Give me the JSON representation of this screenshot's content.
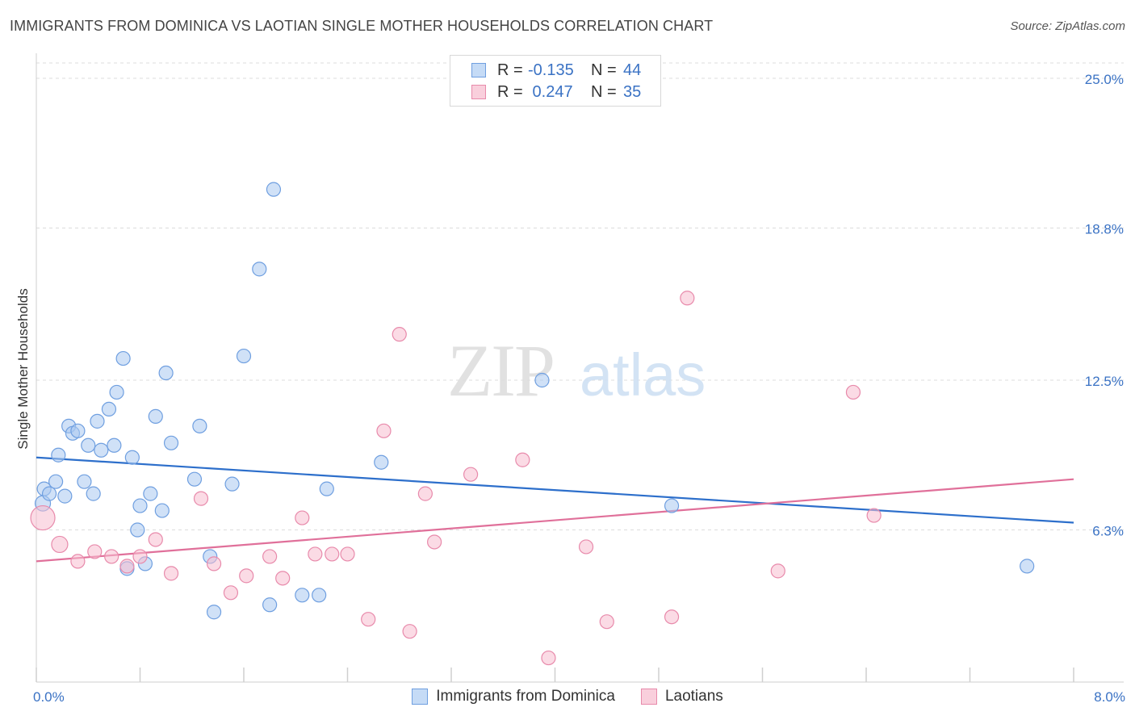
{
  "title": "IMMIGRANTS FROM DOMINICA VS LAOTIAN SINGLE MOTHER HOUSEHOLDS CORRELATION CHART",
  "source": "Source: ZipAtlas.com",
  "watermark": {
    "zip": "ZIP",
    "atlas": "atlas"
  },
  "legend_stats": [
    {
      "r_label": "R = ",
      "r_value": "-0.135",
      "n_label": "N = ",
      "n_value": "44",
      "color": "#a9c8f0",
      "border": "#6f9fe0"
    },
    {
      "r_label": "R = ",
      "r_value": " 0.247",
      "n_label": "N = ",
      "n_value": "35",
      "color": "#f7bdd0",
      "border": "#e88aab"
    }
  ],
  "chart_data": {
    "type": "scatter",
    "ylabel": "Single Mother Households",
    "xlim": [
      0,
      8.0
    ],
    "ylim": [
      0,
      25.0
    ],
    "x_tick_labels": [
      {
        "value": 0,
        "label": "0.0%"
      },
      {
        "value": 8.0,
        "label": "8.0%"
      }
    ],
    "y_tick_labels": [
      {
        "value": 6.3,
        "label": "6.3%"
      },
      {
        "value": 12.5,
        "label": "12.5%"
      },
      {
        "value": 18.8,
        "label": "18.8%"
      },
      {
        "value": 25.0,
        "label": "25.0%"
      }
    ],
    "series": [
      {
        "name": "Immigrants from Dominica",
        "color": "#a9c8f0",
        "stroke": "#6f9fe0",
        "line_color": "#2d6fcb",
        "trend": {
          "x0": 0,
          "y0": 9.3,
          "x1": 8.0,
          "y1": 6.6
        },
        "points": [
          [
            0.05,
            7.4
          ],
          [
            0.06,
            8.0
          ],
          [
            0.1,
            7.8
          ],
          [
            0.15,
            8.3
          ],
          [
            0.17,
            9.4
          ],
          [
            0.22,
            7.7
          ],
          [
            0.25,
            10.6
          ],
          [
            0.28,
            10.3
          ],
          [
            0.32,
            10.4
          ],
          [
            0.37,
            8.3
          ],
          [
            0.4,
            9.8
          ],
          [
            0.44,
            7.8
          ],
          [
            0.47,
            10.8
          ],
          [
            0.5,
            9.6
          ],
          [
            0.56,
            11.3
          ],
          [
            0.6,
            9.8
          ],
          [
            0.62,
            12.0
          ],
          [
            0.67,
            13.4
          ],
          [
            0.74,
            9.3
          ],
          [
            0.7,
            4.7
          ],
          [
            0.78,
            6.3
          ],
          [
            0.8,
            7.3
          ],
          [
            0.84,
            4.9
          ],
          [
            0.88,
            7.8
          ],
          [
            0.92,
            11.0
          ],
          [
            0.97,
            7.1
          ],
          [
            1.0,
            12.8
          ],
          [
            1.04,
            9.9
          ],
          [
            1.22,
            8.4
          ],
          [
            1.26,
            10.6
          ],
          [
            1.34,
            5.2
          ],
          [
            1.37,
            2.9
          ],
          [
            1.51,
            8.2
          ],
          [
            1.6,
            13.5
          ],
          [
            1.72,
            17.1
          ],
          [
            1.8,
            3.2
          ],
          [
            1.83,
            20.4
          ],
          [
            2.05,
            3.6
          ],
          [
            2.18,
            3.6
          ],
          [
            2.24,
            8.0
          ],
          [
            2.66,
            9.1
          ],
          [
            3.9,
            12.5
          ],
          [
            4.9,
            7.3
          ],
          [
            7.64,
            4.8
          ]
        ]
      },
      {
        "name": "Laotians",
        "color": "#f7bdd0",
        "stroke": "#e88aab",
        "line_color": "#e0709a",
        "trend": {
          "x0": 0,
          "y0": 5.0,
          "x1": 8.0,
          "y1": 8.4
        },
        "points": [
          [
            0.05,
            6.8
          ],
          [
            0.18,
            5.7
          ],
          [
            0.32,
            5.0
          ],
          [
            0.45,
            5.4
          ],
          [
            0.58,
            5.2
          ],
          [
            0.7,
            4.8
          ],
          [
            0.8,
            5.2
          ],
          [
            0.92,
            5.9
          ],
          [
            1.04,
            4.5
          ],
          [
            1.27,
            7.6
          ],
          [
            1.37,
            4.9
          ],
          [
            1.5,
            3.7
          ],
          [
            1.62,
            4.4
          ],
          [
            1.8,
            5.2
          ],
          [
            1.9,
            4.3
          ],
          [
            2.05,
            6.8
          ],
          [
            2.15,
            5.3
          ],
          [
            2.28,
            5.3
          ],
          [
            2.4,
            5.3
          ],
          [
            2.56,
            2.6
          ],
          [
            2.68,
            10.4
          ],
          [
            2.8,
            14.4
          ],
          [
            2.88,
            2.1
          ],
          [
            3.0,
            7.8
          ],
          [
            3.07,
            5.8
          ],
          [
            3.35,
            8.6
          ],
          [
            3.75,
            9.2
          ],
          [
            3.95,
            1.0
          ],
          [
            4.24,
            5.6
          ],
          [
            4.4,
            2.5
          ],
          [
            4.9,
            2.7
          ],
          [
            5.02,
            15.9
          ],
          [
            5.72,
            4.6
          ],
          [
            6.3,
            12.0
          ],
          [
            6.46,
            6.9
          ]
        ]
      }
    ]
  }
}
